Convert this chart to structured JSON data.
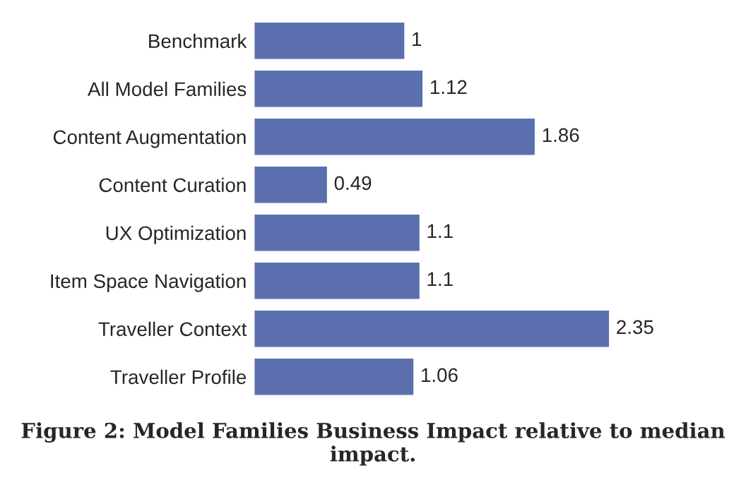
{
  "chart_data": {
    "type": "bar",
    "orientation": "horizontal",
    "categories": [
      "Benchmark",
      "All Model Families",
      "Content Augmentation",
      "Content Curation",
      "UX Optimization",
      "Item Space Navigation",
      "Traveller Context",
      "Traveller Profile"
    ],
    "values": [
      1,
      1.12,
      1.86,
      0.49,
      1.1,
      1.1,
      2.35,
      1.06
    ],
    "color": "#5b6fae",
    "data_labels": true,
    "grid": false,
    "legend": false,
    "annotations": [
      "Figure 2: Model Families Business Impact relative to median impact."
    ]
  }
}
